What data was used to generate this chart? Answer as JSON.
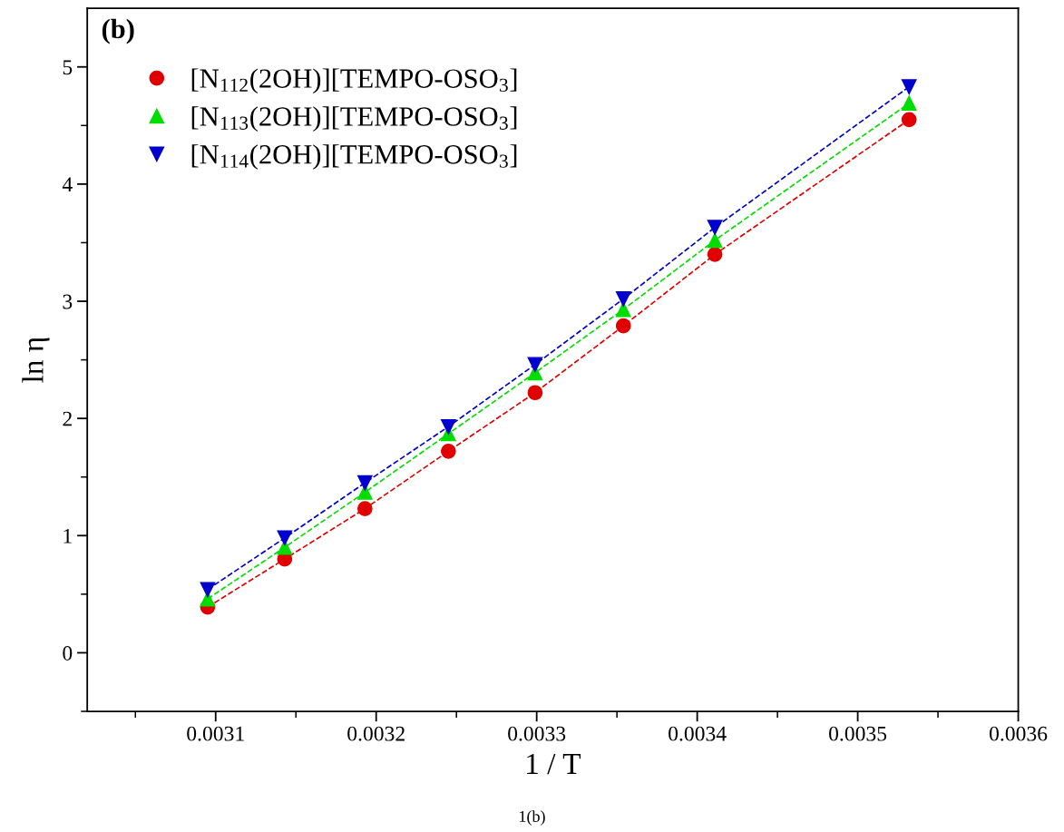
{
  "chart_data": {
    "type": "line",
    "xlabel": "1 / T",
    "ylabel": "ln η",
    "x": [
      0.003095,
      0.003143,
      0.003193,
      0.003245,
      0.003299,
      0.003354,
      0.003411,
      0.003532
    ],
    "series": [
      {
        "name": "[N$_{112}$(2OH)][TEMPO-OSO$_{3}$]",
        "color": "#e00000",
        "marker": "circle",
        "values": [
          0.39,
          0.8,
          1.23,
          1.72,
          2.22,
          2.79,
          3.4,
          4.55
        ]
      },
      {
        "name": "[N$_{113}$(2OH)][TEMPO-OSO$_{3}$]",
        "color": "#00dd00",
        "marker": "triangle",
        "values": [
          0.46,
          0.9,
          1.37,
          1.87,
          2.39,
          2.93,
          3.52,
          4.69
        ]
      },
      {
        "name": "[N$_{114}$(2OH)][TEMPO-OSO$_{3}$]",
        "color": "#0000cc",
        "marker": "triangle_down",
        "values": [
          0.54,
          0.98,
          1.45,
          1.93,
          2.46,
          3.02,
          3.63,
          4.83
        ]
      }
    ],
    "xlim": [
      0.00302,
      0.0036
    ],
    "xticks": [
      0.0031,
      0.0032,
      0.0033,
      0.0034,
      0.0035,
      0.0036
    ],
    "ylim": [
      -0.5,
      5.5
    ],
    "yticks": [
      0,
      1,
      2,
      3,
      4,
      5
    ],
    "line_style": "dashed",
    "grid": false,
    "legend": "top left",
    "annotations": [
      "(b)",
      "1(b)"
    ]
  }
}
